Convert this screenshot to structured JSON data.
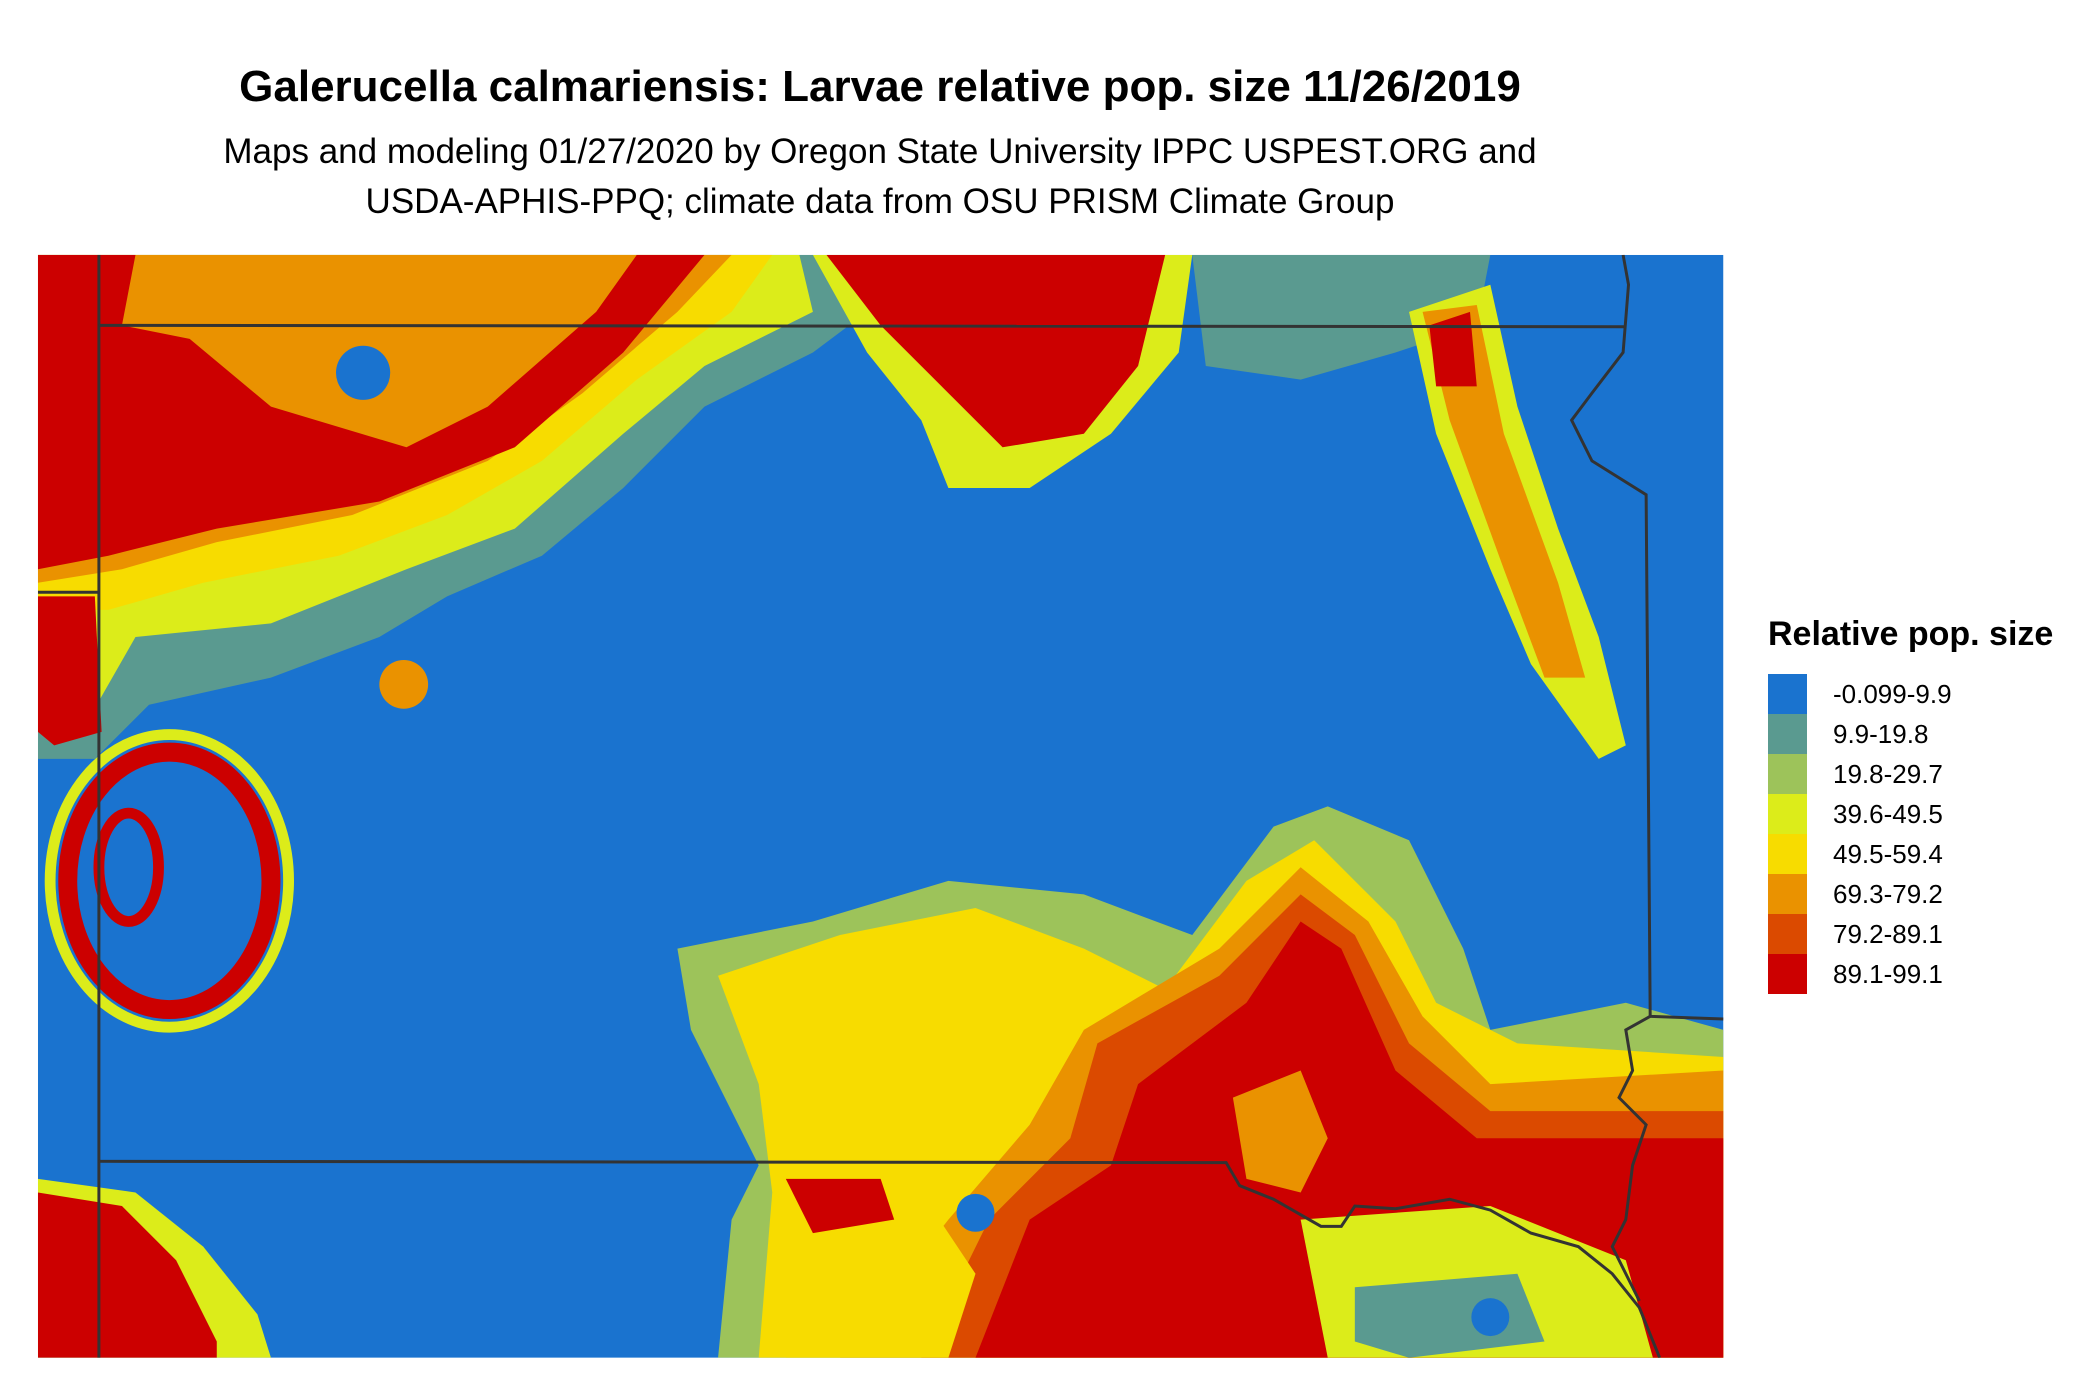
{
  "title": "Galerucella calmariensis: Larvae relative pop. size 11/26/2019",
  "subtitle_line1": "Maps and modeling 01/27/2020 by Oregon State University IPPC USPEST.ORG and",
  "subtitle_line2": "USDA-APHIS-PPQ; climate data from OSU PRISM Climate Group",
  "legend": {
    "title": "Relative pop. size",
    "items": [
      {
        "label": "-0.099-9.9",
        "color": "#1a73cf"
      },
      {
        "label": "9.9-19.8",
        "color": "#5a9a90"
      },
      {
        "label": "19.8-29.7",
        "color": "#9dc35a"
      },
      {
        "label": "39.6-49.5",
        "color": "#dcec1a"
      },
      {
        "label": "49.5-59.4",
        "color": "#f7dc00"
      },
      {
        "label": "69.3-79.2",
        "color": "#ea9200"
      },
      {
        "label": "79.2-89.1",
        "color": "#db4a00"
      },
      {
        "label": "89.1-99.1",
        "color": "#cc0000"
      }
    ]
  },
  "border_color": "#333333"
}
